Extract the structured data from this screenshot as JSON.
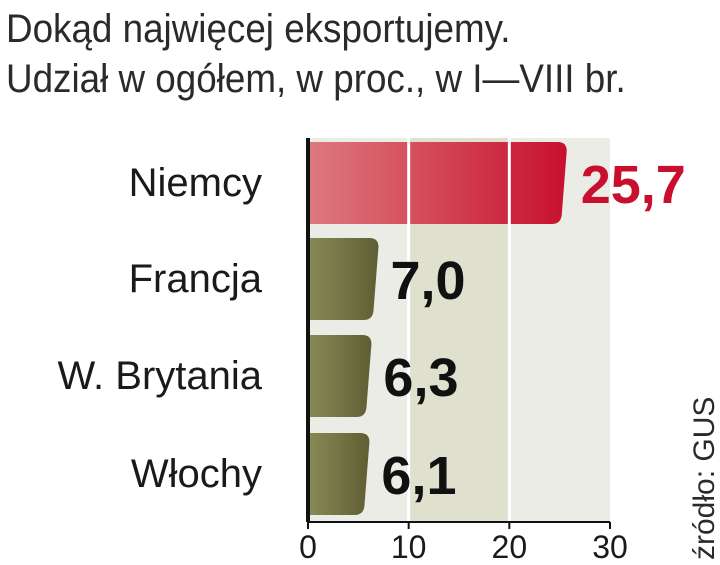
{
  "title": "Dokąd najwięcej eksportujemy.",
  "subtitle": "Udział w ogółem, w proc., w I—VIII br.",
  "source": "źródło: GUS",
  "colors": {
    "highlight": "#c8102e",
    "bar": "#6b6a3e",
    "band_dark": "#e0e0cf",
    "band_light": "#ecece6",
    "axis": "#111111"
  },
  "chart_data": {
    "type": "bar",
    "orientation": "horizontal",
    "categories": [
      "Niemcy",
      "Francja",
      "W. Brytania",
      "Włochy"
    ],
    "values": [
      25.7,
      7.0,
      6.3,
      6.1
    ],
    "value_labels": [
      "25,7",
      "7,0",
      "6,3",
      "6,1"
    ],
    "xticks": [
      0,
      10,
      20,
      30
    ],
    "xlim": [
      0,
      30
    ],
    "highlight_index": 0,
    "grid": true,
    "legend": "none"
  }
}
